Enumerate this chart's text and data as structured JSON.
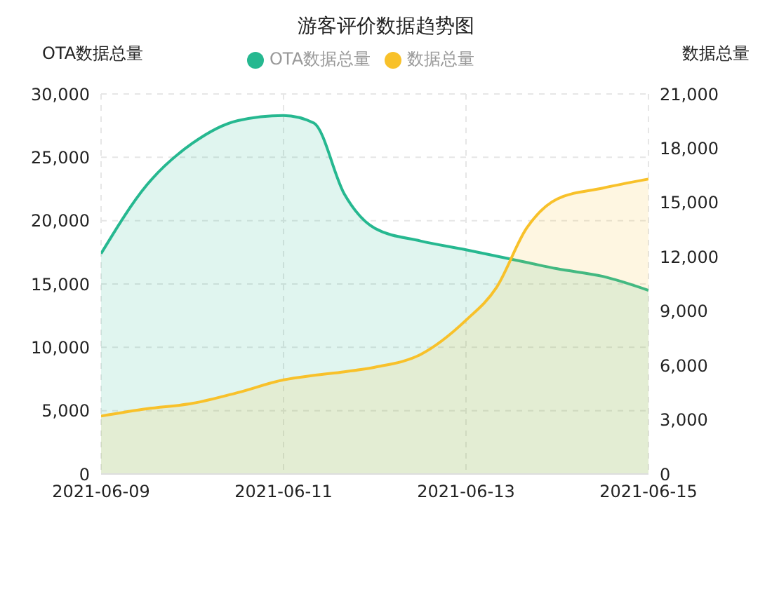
{
  "chart_data": {
    "type": "area",
    "title": "游客评价数据趋势图",
    "ylabel": "OTA数据总量",
    "y2label": "数据总量",
    "x": [
      "2021-06-09",
      "2021-06-09T12:00",
      "2021-06-10",
      "2021-06-10T12:00",
      "2021-06-11",
      "2021-06-11T08:00",
      "2021-06-11T16:00",
      "2021-06-12",
      "2021-06-12T12:00",
      "2021-06-13",
      "2021-06-13T08:00",
      "2021-06-13T16:00",
      "2021-06-14",
      "2021-06-14T12:00",
      "2021-06-15"
    ],
    "series": [
      {
        "name": "OTA数据总量",
        "color": "#26b890",
        "values": [
          17400,
          22800,
          26100,
          27900,
          28300,
          27700,
          22100,
          19400,
          18400,
          17700,
          17200,
          16700,
          16200,
          15600,
          14500
        ]
      },
      {
        "name": "数据总量",
        "color": "#f8c12a",
        "axis": "y2",
        "values": [
          3200,
          3600,
          3900,
          4500,
          5200,
          5450,
          5650,
          5900,
          6600,
          8500,
          10300,
          13600,
          15200,
          15800,
          16300
        ]
      }
    ],
    "xlim": [
      "2021-06-09",
      "2021-06-15"
    ],
    "xticks": [
      "2021-06-09",
      "2021-06-11",
      "2021-06-13",
      "2021-06-15"
    ],
    "ylim": [
      0,
      30000
    ],
    "yticks": [
      0,
      {
        "value": 5000,
        "label": "5,000"
      },
      {
        "value": 10000,
        "label": "10,000"
      },
      {
        "value": 15000,
        "label": "15,000"
      },
      {
        "value": 20000,
        "label": "20,000"
      },
      {
        "value": 25000,
        "label": "25,000"
      },
      {
        "value": 30000,
        "label": "30,000"
      }
    ],
    "y2lim": [
      0,
      21000
    ],
    "y2ticks": [
      0,
      {
        "value": 3000,
        "label": "3,000"
      },
      {
        "value": 6000,
        "label": "6,000"
      },
      {
        "value": 9000,
        "label": "9,000"
      },
      {
        "value": 12000,
        "label": "12,000"
      },
      {
        "value": 15000,
        "label": "15,000"
      },
      {
        "value": 18000,
        "label": "18,000"
      },
      {
        "value": 21000,
        "label": "21,000"
      }
    ],
    "grid": true,
    "legend": "top"
  }
}
